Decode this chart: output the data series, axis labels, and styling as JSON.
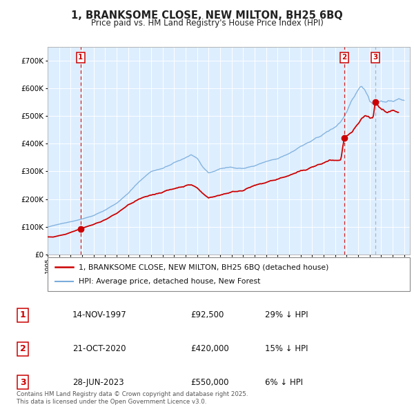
{
  "title": "1, BRANKSOME CLOSE, NEW MILTON, BH25 6BQ",
  "subtitle": "Price paid vs. HM Land Registry's House Price Index (HPI)",
  "ylim": [
    0,
    750000
  ],
  "yticks": [
    0,
    100000,
    200000,
    300000,
    400000,
    500000,
    600000,
    700000
  ],
  "ytick_labels": [
    "£0",
    "£100K",
    "£200K",
    "£300K",
    "£400K",
    "£500K",
    "£600K",
    "£700K"
  ],
  "xlim_start": 1995.0,
  "xlim_end": 2026.5,
  "sale_dates": [
    1997.87,
    2020.8,
    2023.49
  ],
  "sale_prices": [
    92500,
    420000,
    550000
  ],
  "sale_labels": [
    "1",
    "2",
    "3"
  ],
  "sale_line_styles": [
    "red_dashed",
    "red_dashed",
    "grey_dashed"
  ],
  "legend_red": "1, BRANKSOME CLOSE, NEW MILTON, BH25 6BQ (detached house)",
  "legend_blue": "HPI: Average price, detached house, New Forest",
  "table_rows": [
    {
      "num": "1",
      "date": "14-NOV-1997",
      "price": "£92,500",
      "hpi": "29% ↓ HPI"
    },
    {
      "num": "2",
      "date": "21-OCT-2020",
      "price": "£420,000",
      "hpi": "15% ↓ HPI"
    },
    {
      "num": "3",
      "date": "28-JUN-2023",
      "price": "£550,000",
      "hpi": "6% ↓ HPI"
    }
  ],
  "footnote": "Contains HM Land Registry data © Crown copyright and database right 2025.\nThis data is licensed under the Open Government Licence v3.0.",
  "red_color": "#cc0000",
  "blue_color": "#7aaddb",
  "grey_dashed_color": "#aaaaaa",
  "background_chart": "#ddeeff",
  "background_fig": "#ffffff"
}
